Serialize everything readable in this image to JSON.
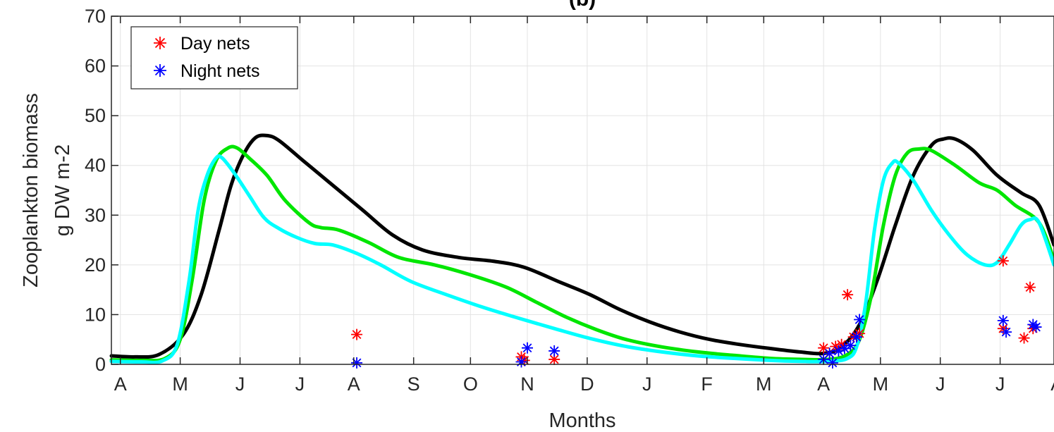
{
  "chart_data": {
    "type": "line",
    "title": "(b)",
    "xlabel": "Months",
    "ylabel": [
      "Zooplankton biomass",
      "g DW m-2"
    ],
    "xlim": [
      0,
      15.75
    ],
    "ylim": [
      0,
      70
    ],
    "yticks": [
      0,
      10,
      20,
      30,
      40,
      50,
      60,
      70
    ],
    "xticks": [
      {
        "x": 0.15,
        "label": "A"
      },
      {
        "x": 1.15,
        "label": "M"
      },
      {
        "x": 2.15,
        "label": "J"
      },
      {
        "x": 3.15,
        "label": "J"
      },
      {
        "x": 4.05,
        "label": "A"
      },
      {
        "x": 5.05,
        "label": "S"
      },
      {
        "x": 6.0,
        "label": "O"
      },
      {
        "x": 6.95,
        "label": "N"
      },
      {
        "x": 7.95,
        "label": "D"
      },
      {
        "x": 8.95,
        "label": "J"
      },
      {
        "x": 9.95,
        "label": "F"
      },
      {
        "x": 10.9,
        "label": "M"
      },
      {
        "x": 11.9,
        "label": "A"
      },
      {
        "x": 12.85,
        "label": "M"
      },
      {
        "x": 13.85,
        "label": "J"
      },
      {
        "x": 14.85,
        "label": "J"
      },
      {
        "x": 15.8,
        "label": "A"
      }
    ],
    "grid": true,
    "legend_position": "top-left",
    "series": [
      {
        "color": "#000000",
        "values": [
          [
            0,
            1.7
          ],
          [
            0.4,
            1.5
          ],
          [
            0.8,
            2
          ],
          [
            1.2,
            6
          ],
          [
            1.5,
            14
          ],
          [
            1.8,
            27
          ],
          [
            2,
            36
          ],
          [
            2.2,
            42
          ],
          [
            2.4,
            45.5
          ],
          [
            2.6,
            46
          ],
          [
            2.8,
            45
          ],
          [
            3.2,
            41
          ],
          [
            3.6,
            37
          ],
          [
            4.2,
            31
          ],
          [
            4.7,
            26
          ],
          [
            5.2,
            23
          ],
          [
            5.8,
            21.5
          ],
          [
            6.4,
            20.7
          ],
          [
            6.9,
            19.5
          ],
          [
            7.5,
            16.5
          ],
          [
            8,
            14
          ],
          [
            8.5,
            11
          ],
          [
            9,
            8.5
          ],
          [
            9.5,
            6.5
          ],
          [
            10,
            5
          ],
          [
            10.5,
            4
          ],
          [
            11,
            3.2
          ],
          [
            11.5,
            2.5
          ],
          [
            11.9,
            2.2
          ],
          [
            12.2,
            3.5
          ],
          [
            12.5,
            8
          ],
          [
            12.8,
            17
          ],
          [
            13.1,
            28
          ],
          [
            13.4,
            38
          ],
          [
            13.7,
            44
          ],
          [
            13.9,
            45.3
          ],
          [
            14.1,
            45.3
          ],
          [
            14.4,
            43
          ],
          [
            14.8,
            38
          ],
          [
            15.2,
            34.5
          ],
          [
            15.5,
            32
          ],
          [
            15.75,
            24
          ]
        ]
      },
      {
        "color": "#00e600",
        "values": [
          [
            0,
            0.9
          ],
          [
            0.5,
            0.8
          ],
          [
            0.9,
            1.2
          ],
          [
            1.15,
            5
          ],
          [
            1.35,
            17
          ],
          [
            1.55,
            33
          ],
          [
            1.75,
            41
          ],
          [
            1.95,
            43.5
          ],
          [
            2.1,
            43.5
          ],
          [
            2.3,
            41.5
          ],
          [
            2.6,
            38
          ],
          [
            2.9,
            33
          ],
          [
            3.3,
            28.5
          ],
          [
            3.5,
            27.5
          ],
          [
            3.8,
            27
          ],
          [
            4.3,
            24.5
          ],
          [
            4.8,
            21.5
          ],
          [
            5.4,
            20
          ],
          [
            6,
            18
          ],
          [
            6.6,
            15.5
          ],
          [
            7.1,
            12.5
          ],
          [
            7.6,
            9.5
          ],
          [
            8.1,
            7
          ],
          [
            8.6,
            5
          ],
          [
            9.2,
            3.5
          ],
          [
            9.8,
            2.5
          ],
          [
            10.4,
            1.8
          ],
          [
            11,
            1.2
          ],
          [
            11.5,
            1
          ],
          [
            12,
            1
          ],
          [
            12.3,
            2
          ],
          [
            12.5,
            5
          ],
          [
            12.7,
            14
          ],
          [
            12.9,
            28
          ],
          [
            13.1,
            38
          ],
          [
            13.3,
            42.5
          ],
          [
            13.5,
            43.3
          ],
          [
            13.7,
            43
          ],
          [
            14.1,
            40
          ],
          [
            14.5,
            36.5
          ],
          [
            14.8,
            35
          ],
          [
            15.1,
            32
          ],
          [
            15.5,
            28.5
          ],
          [
            15.75,
            21
          ]
        ]
      },
      {
        "color": "#00ffff",
        "values": [
          [
            0,
            0.6
          ],
          [
            0.5,
            0.5
          ],
          [
            0.85,
            0.7
          ],
          [
            1.1,
            4
          ],
          [
            1.3,
            17
          ],
          [
            1.45,
            31
          ],
          [
            1.6,
            38
          ],
          [
            1.75,
            41.5
          ],
          [
            1.85,
            41.5
          ],
          [
            2.05,
            38.5
          ],
          [
            2.3,
            34
          ],
          [
            2.55,
            29.5
          ],
          [
            2.8,
            27.3
          ],
          [
            3.1,
            25.5
          ],
          [
            3.4,
            24.3
          ],
          [
            3.7,
            24
          ],
          [
            4.1,
            22.3
          ],
          [
            4.5,
            20
          ],
          [
            5,
            16.7
          ],
          [
            5.6,
            14
          ],
          [
            6.2,
            11.5
          ],
          [
            6.8,
            9.3
          ],
          [
            7.4,
            7.2
          ],
          [
            8,
            5.2
          ],
          [
            8.6,
            3.6
          ],
          [
            9.2,
            2.5
          ],
          [
            9.8,
            1.7
          ],
          [
            10.4,
            1.2
          ],
          [
            11,
            0.8
          ],
          [
            11.5,
            0.6
          ],
          [
            12,
            0.6
          ],
          [
            12.3,
            1.2
          ],
          [
            12.45,
            3.5
          ],
          [
            12.6,
            12
          ],
          [
            12.75,
            27
          ],
          [
            12.9,
            37
          ],
          [
            13.05,
            40.5
          ],
          [
            13.15,
            40.5
          ],
          [
            13.4,
            37
          ],
          [
            13.7,
            31
          ],
          [
            14,
            26
          ],
          [
            14.3,
            22
          ],
          [
            14.6,
            20
          ],
          [
            14.8,
            20.5
          ],
          [
            15,
            24
          ],
          [
            15.2,
            28
          ],
          [
            15.35,
            29.1
          ],
          [
            15.5,
            28.5
          ],
          [
            15.75,
            20
          ]
        ]
      }
    ],
    "markers": [
      {
        "name": "Day nets",
        "color": "#ff0000",
        "points": [
          [
            4.1,
            6
          ],
          [
            6.85,
            1.5
          ],
          [
            6.9,
            0.8
          ],
          [
            7.4,
            1
          ],
          [
            11.9,
            3.3
          ],
          [
            12.0,
            2.2
          ],
          [
            12.1,
            3.6
          ],
          [
            12.2,
            4
          ],
          [
            12.3,
            14
          ],
          [
            12.4,
            5.5
          ],
          [
            12.5,
            6.2
          ],
          [
            14.9,
            20.8
          ],
          [
            14.9,
            7.2
          ],
          [
            15.25,
            5.3
          ],
          [
            15.35,
            15.5
          ],
          [
            15.4,
            7.2
          ]
        ]
      },
      {
        "name": "Night nets",
        "color": "#0000ff",
        "points": [
          [
            4.1,
            0.3
          ],
          [
            6.85,
            0.5
          ],
          [
            6.95,
            3.3
          ],
          [
            7.4,
            2.7
          ],
          [
            11.9,
            1
          ],
          [
            12.0,
            2.2
          ],
          [
            12.05,
            0.3
          ],
          [
            12.15,
            2.7
          ],
          [
            12.25,
            3.2
          ],
          [
            12.35,
            3.8
          ],
          [
            12.45,
            5.5
          ],
          [
            12.5,
            9
          ],
          [
            14.9,
            8.8
          ],
          [
            14.95,
            6.5
          ],
          [
            15.4,
            8
          ],
          [
            15.45,
            7.5
          ]
        ]
      }
    ]
  }
}
